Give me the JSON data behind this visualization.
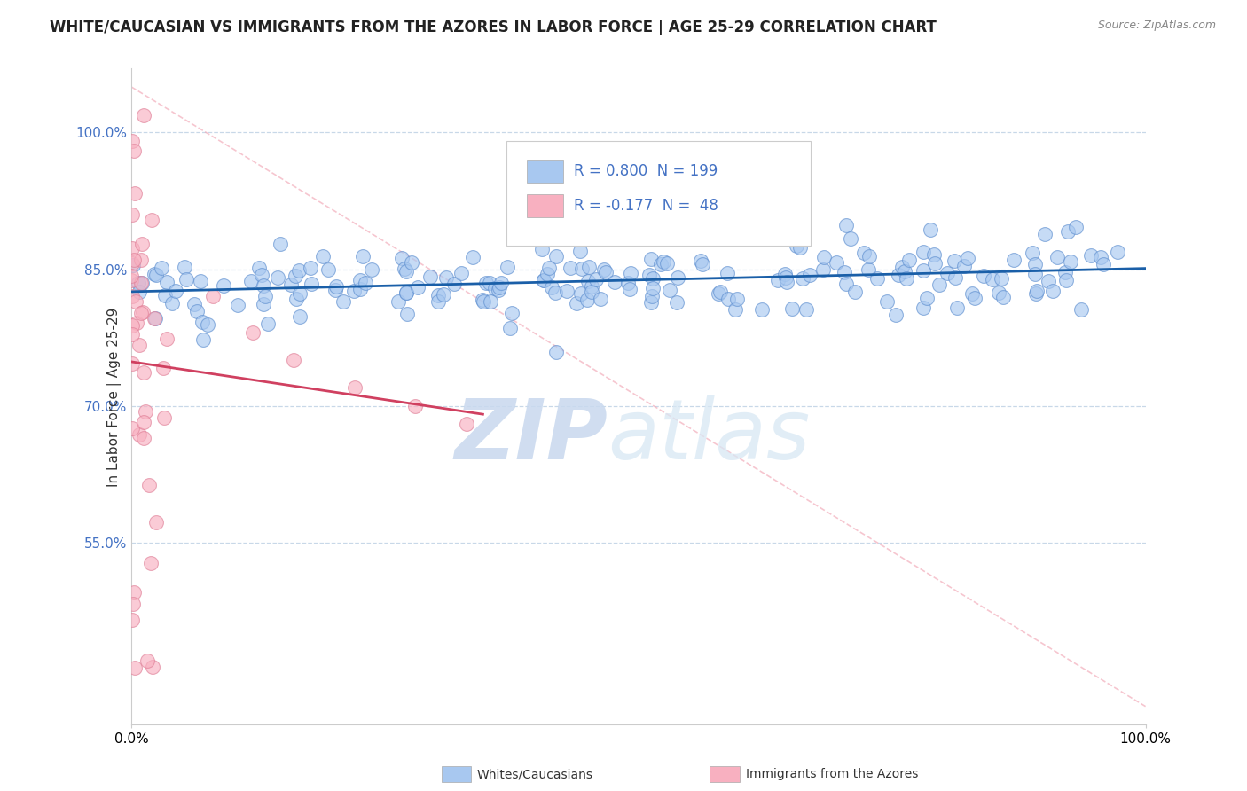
{
  "title": "WHITE/CAUCASIAN VS IMMIGRANTS FROM THE AZORES IN LABOR FORCE | AGE 25-29 CORRELATION CHART",
  "source": "Source: ZipAtlas.com",
  "ylabel": "In Labor Force | Age 25-29",
  "xlabel": "",
  "xlim": [
    0.0,
    1.0
  ],
  "ylim": [
    0.35,
    1.07
  ],
  "yticks": [
    0.55,
    0.7,
    0.85,
    1.0
  ],
  "ytick_labels": [
    "55.0%",
    "70.0%",
    "85.0%",
    "100.0%"
  ],
  "xticks": [
    0.0,
    1.0
  ],
  "xtick_labels": [
    "0.0%",
    "100.0%"
  ],
  "blue_R": 0.8,
  "blue_N": 199,
  "pink_R": -0.177,
  "pink_N": 48,
  "blue_color": "#a8c8f0",
  "pink_color": "#f8b0c0",
  "blue_edge_color": "#6090d0",
  "pink_edge_color": "#e08098",
  "blue_line_color": "#1a5fa8",
  "pink_line_color": "#d04060",
  "diag_line_color": "#f0a0b0",
  "legend_label_blue": "Whites/Caucasians",
  "legend_label_pink": "Immigrants from the Azores",
  "watermark_zip": "ZIP",
  "watermark_atlas": "atlas",
  "background_color": "#ffffff",
  "grid_color": "#c8d8e8",
  "title_fontsize": 12,
  "axis_label_fontsize": 11,
  "tick_fontsize": 11,
  "legend_fontsize": 12,
  "tick_color": "#4472c4"
}
